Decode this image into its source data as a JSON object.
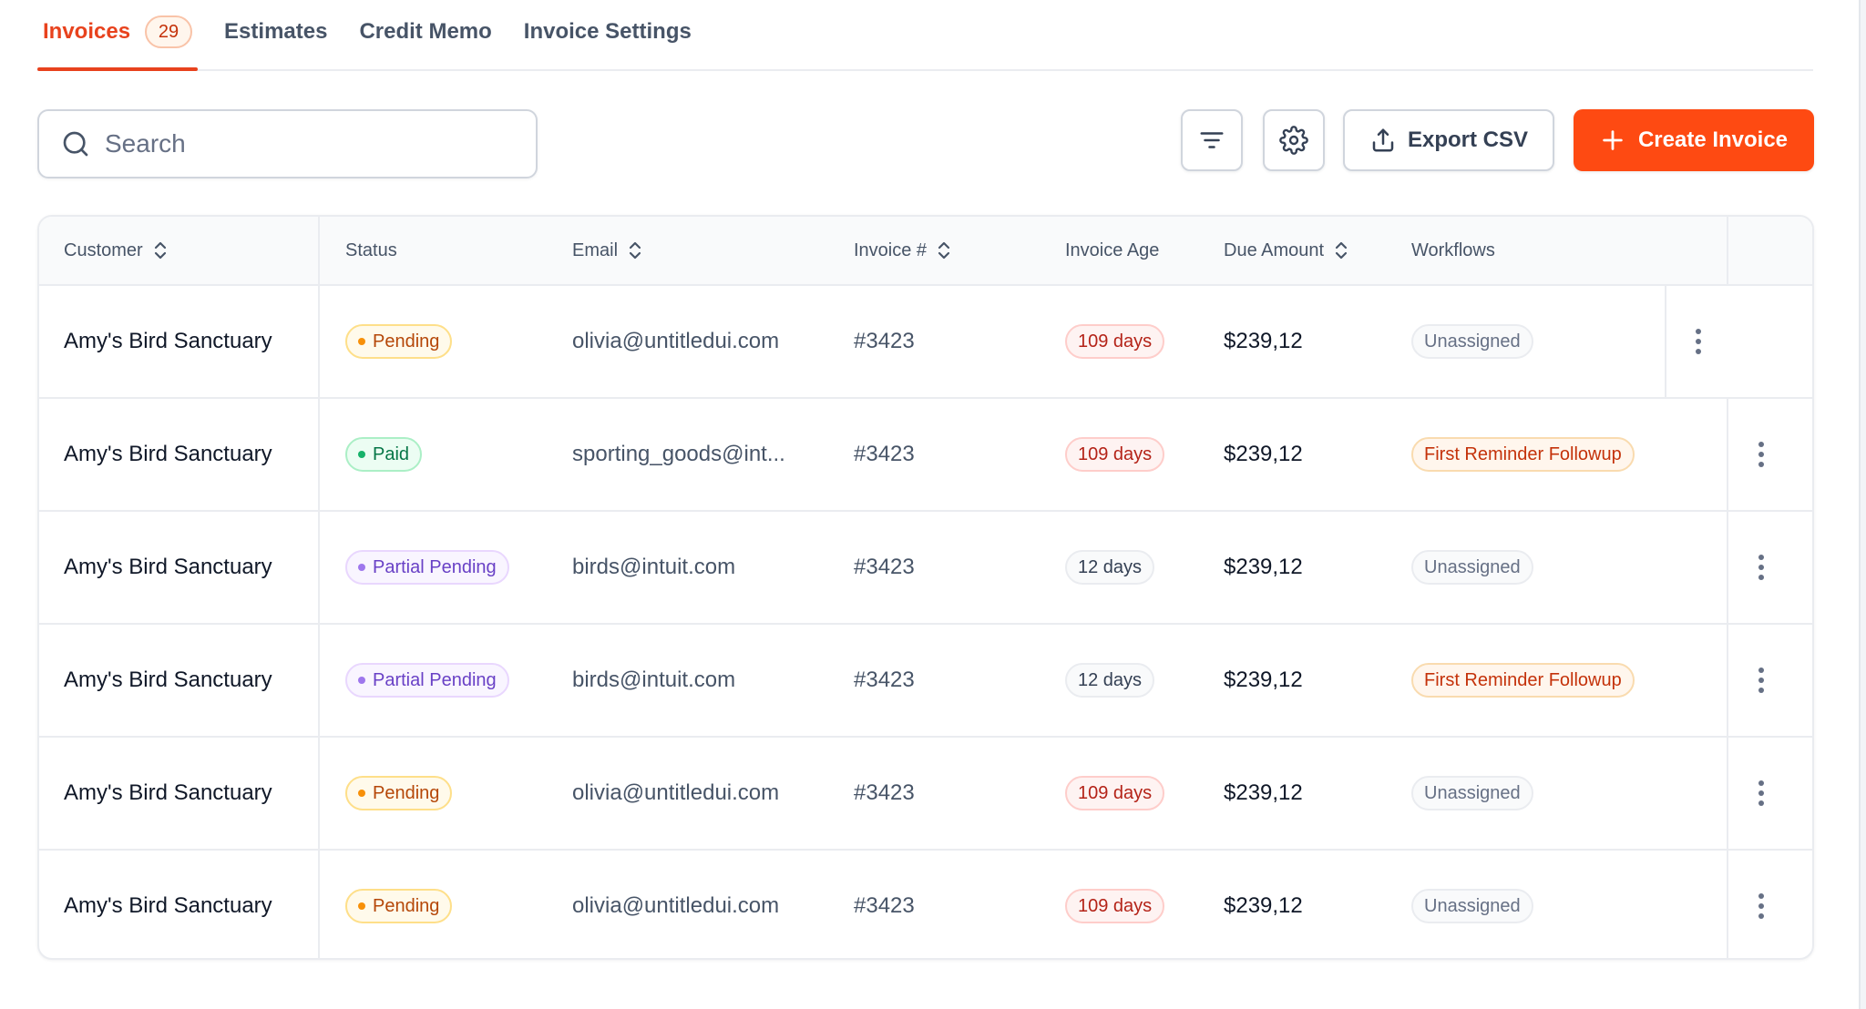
{
  "tabs": [
    {
      "label": "Invoices",
      "count": "29"
    },
    {
      "label": "Estimates"
    },
    {
      "label": "Credit Memo"
    },
    {
      "label": "Invoice Settings"
    }
  ],
  "search": {
    "placeholder": "Search"
  },
  "toolbar": {
    "export_label": "Export CSV",
    "create_label": "Create Invoice"
  },
  "colors": {
    "accent": "#fe4a12",
    "active_tab": "#e8421d"
  },
  "table": {
    "columns": {
      "customer": "Customer",
      "status": "Status",
      "email": "Email",
      "invoice": "Invoice #",
      "age": "Invoice Age",
      "amount": "Due Amount",
      "workflows": "Workflows"
    },
    "rows": [
      {
        "customer": "Amy's Bird Sanctuary",
        "status": "Pending",
        "email": "olivia@untitledui.com",
        "invoice": "#3423",
        "age": "109 days",
        "amount": "$239,12",
        "workflow": "Unassigned"
      },
      {
        "customer": "Amy's Bird Sanctuary",
        "status": "Paid",
        "email": "sporting_goods@int...",
        "invoice": "#3423",
        "age": "109 days",
        "amount": "$239,12",
        "workflow": "First Reminder Followup"
      },
      {
        "customer": "Amy's Bird Sanctuary",
        "status": "Partial Pending",
        "email": "birds@intuit.com",
        "invoice": "#3423",
        "age": "12 days",
        "amount": "$239,12",
        "workflow": "Unassigned"
      },
      {
        "customer": "Amy's Bird Sanctuary",
        "status": "Partial Pending",
        "email": "birds@intuit.com",
        "invoice": "#3423",
        "age": "12 days",
        "amount": "$239,12",
        "workflow": "First Reminder Followup"
      },
      {
        "customer": "Amy's Bird Sanctuary",
        "status": "Pending",
        "email": "olivia@untitledui.com",
        "invoice": "#3423",
        "age": "109 days",
        "amount": "$239,12",
        "workflow": "Unassigned"
      },
      {
        "customer": "Amy's Bird Sanctuary",
        "status": "Pending",
        "email": "olivia@untitledui.com",
        "invoice": "#3423",
        "age": "109 days",
        "amount": "$239,12",
        "workflow": "Unassigned"
      }
    ]
  }
}
